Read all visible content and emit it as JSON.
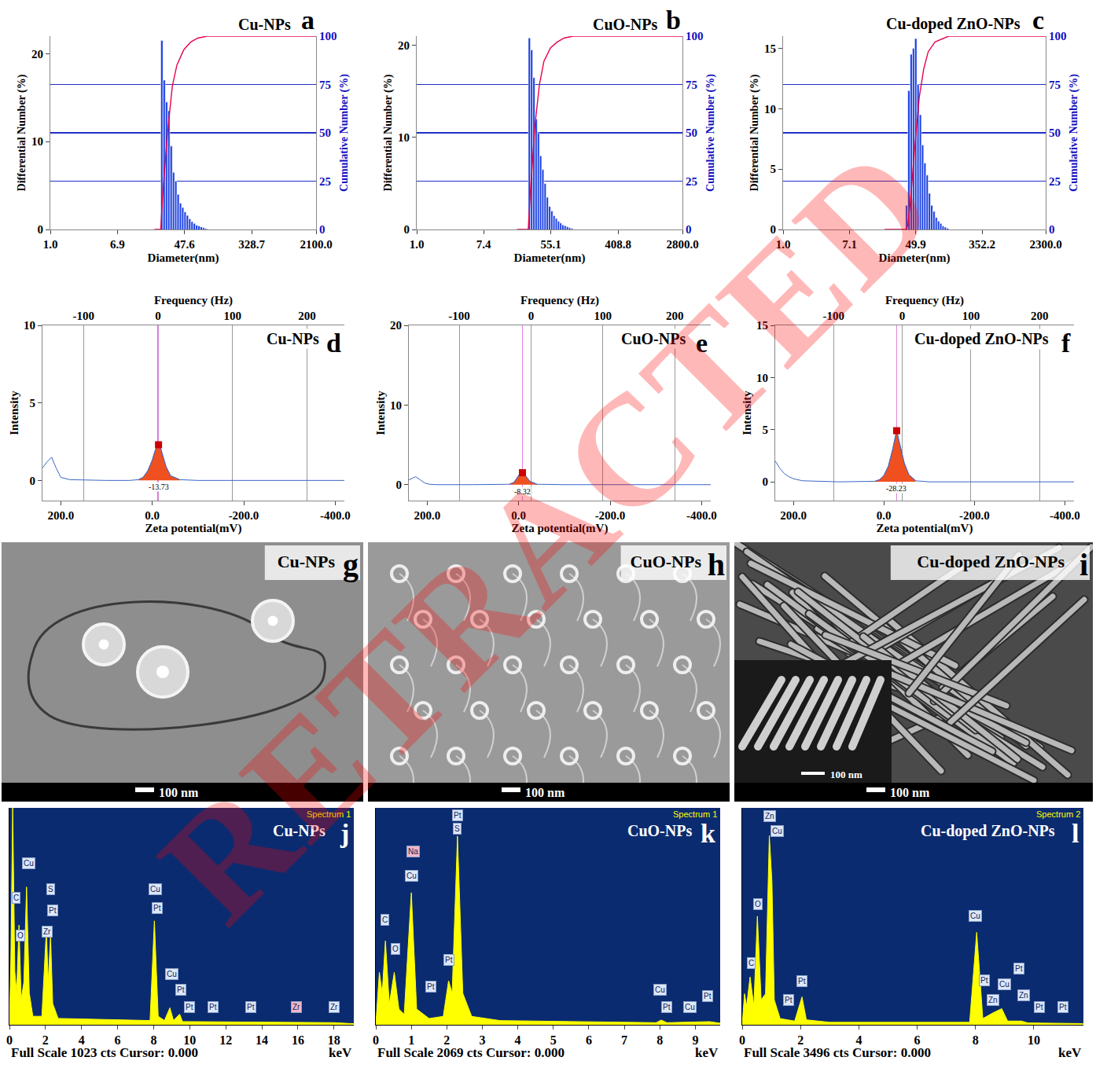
{
  "chart_data": [
    {
      "type": "histogram",
      "panel": "a",
      "title": "Cu-NPs",
      "xlabel": "Diameter(nm)",
      "ylabel": "Differential Number (%)",
      "y2label": "Cumulative Number (%)",
      "log": "x",
      "xlim": [
        1,
        2100
      ],
      "xticks": [
        {
          "value": 1,
          "label": "1.0"
        },
        6.9,
        47.6,
        328.7,
        {
          "value": 2100,
          "label": "2100.0"
        }
      ],
      "ylim": [
        0,
        22
      ],
      "yticks": [
        0,
        10,
        20
      ],
      "y2lim": [
        0,
        100
      ],
      "y2ticks": [
        0,
        25,
        50,
        75,
        100
      ],
      "grid": true,
      "color": "#1a3fe0",
      "bins": [
        24,
        25.6,
        27.4,
        29.3,
        31.3,
        33.5,
        35.8,
        38.2,
        40.9,
        43.7,
        46.7,
        49.9,
        53.4,
        57.1,
        61.0,
        65.2,
        69.7,
        74.5,
        79.7,
        85.2,
        91.1
      ],
      "counts": [
        21.5,
        17,
        14.5,
        13.5,
        9.5,
        6.5,
        5.5,
        4,
        3,
        2.5,
        2,
        1.6,
        1.2,
        0.9,
        0.7,
        0.5,
        0.4,
        0.3,
        0.2,
        0.1
      ],
      "series": [
        {
          "type": "line",
          "axis": "y2",
          "color": "#e8004c",
          "x": [
            20,
            24,
            25.6,
            27.4,
            29.3,
            33.5,
            38.2,
            46.7,
            57.1,
            69.7,
            91.1,
            2100
          ],
          "values": [
            0,
            0,
            20,
            37,
            51,
            74,
            85,
            93,
            97,
            99,
            100,
            100
          ]
        }
      ]
    },
    {
      "type": "histogram",
      "panel": "b",
      "title": "CuO-NPs",
      "xlabel": "Diameter(nm)",
      "ylabel": "Differential Number (%)",
      "y2label": "Cumulative Number (%)",
      "log": "x",
      "xlim": [
        1,
        2800
      ],
      "xticks": [
        {
          "value": 1,
          "label": "1.0"
        },
        7.4,
        55.1,
        408.8,
        {
          "value": 2800,
          "label": "2800.0"
        }
      ],
      "ylim": [
        0,
        21
      ],
      "yticks": [
        0,
        10,
        20
      ],
      "y2lim": [
        0,
        100
      ],
      "y2ticks": [
        0,
        25,
        50,
        75,
        100
      ],
      "grid": true,
      "color": "#1a3fe0",
      "bins": [
        28,
        29.9,
        32.0,
        34.2,
        36.6,
        39.1,
        41.8,
        44.7,
        47.8,
        51.1,
        54.6,
        58.4,
        62.4,
        66.7,
        71.3,
        76.2,
        81.5,
        87.1,
        93.1,
        99.5,
        106.4
      ],
      "counts": [
        20.8,
        19.5,
        16.5,
        12,
        10.5,
        8,
        6.5,
        5,
        3.5,
        2.5,
        2,
        1.5,
        1.2,
        0.9,
        0.7,
        0.5,
        0.4,
        0.3,
        0.2,
        0.1
      ],
      "series": [
        {
          "type": "line",
          "axis": "y2",
          "color": "#e8004c",
          "x": [
            20,
            28,
            29.9,
            32,
            34.2,
            39.1,
            44.7,
            54.6,
            66.7,
            81.5,
            106.4,
            2800
          ],
          "values": [
            0,
            0,
            20,
            38,
            54,
            75,
            87,
            94,
            97,
            99,
            100,
            100
          ]
        }
      ]
    },
    {
      "type": "histogram",
      "panel": "c",
      "title": "Cu-doped ZnO-NPs",
      "xlabel": "Diameter(nm)",
      "ylabel": "Differential Number (%)",
      "y2label": "Cumulative Number (%)",
      "log": "x",
      "xlim": [
        1,
        2300
      ],
      "xticks": [
        {
          "value": 1,
          "label": "1.0"
        },
        7.1,
        49.9,
        352.2,
        {
          "value": 2300,
          "label": "2300.0"
        }
      ],
      "ylim": [
        0,
        16
      ],
      "yticks": [
        0,
        5,
        10,
        15
      ],
      "y2lim": [
        0,
        100
      ],
      "y2ticks": [
        0,
        25,
        50,
        75,
        100
      ],
      "grid": true,
      "color": "#1a3fe0",
      "bins": [
        37,
        39.5,
        42.3,
        45.2,
        48.3,
        51.6,
        55.2,
        59.0,
        63.1,
        67.5,
        72.2,
        77.2,
        82.5,
        88.2,
        94.3,
        100.8,
        107.8,
        115.2,
        123.2,
        131.7
      ],
      "counts": [
        2,
        11.5,
        14.5,
        15,
        15.8,
        12,
        9.5,
        7,
        5.5,
        4.5,
        3,
        2,
        1.5,
        1,
        0.7,
        0.5,
        0.3,
        0.2,
        0.1
      ],
      "series": [
        {
          "type": "line",
          "axis": "y2",
          "color": "#e8004c",
          "x": [
            20,
            37,
            39.5,
            42.3,
            45.2,
            48.3,
            55.2,
            63.1,
            72.2,
            88.2,
            131.7,
            2300
          ],
          "values": [
            0,
            0,
            2,
            13,
            27,
            42,
            68,
            83,
            92,
            97,
            100,
            100
          ]
        }
      ]
    },
    {
      "type": "line",
      "panel": "d",
      "title": "Cu-NPs",
      "xlabel": "Zeta potential(mV)",
      "x2label": "Frequency (Hz)",
      "ylabel": "Intensity",
      "xlim": [
        240,
        -420
      ],
      "xticks": [
        {
          "value": 200,
          "label": "200.0"
        },
        {
          "value": 0,
          "label": "0.0"
        },
        {
          "value": -200,
          "label": "-200.0"
        },
        {
          "value": -400,
          "label": "-400.0"
        }
      ],
      "x2lim": [
        -155,
        250
      ],
      "x2ticks": [
        -100,
        0,
        100,
        200
      ],
      "ylim": [
        -1.3,
        10
      ],
      "yticks": [
        0,
        5,
        10
      ],
      "grid": true,
      "color": "#3a66c8",
      "x": [
        240,
        230,
        220,
        210,
        200,
        180,
        100,
        50,
        30,
        20,
        10,
        0,
        -5,
        -10,
        -13.73,
        -18,
        -25,
        -30,
        -40,
        -60,
        -100,
        -200,
        -300,
        -420
      ],
      "values": [
        0.8,
        1.2,
        1.5,
        0.8,
        0.2,
        0.05,
        0,
        0,
        0.05,
        0.2,
        0.6,
        1.3,
        1.8,
        2.2,
        2.3,
        2.1,
        1.4,
        0.9,
        0.3,
        0.05,
        0,
        0,
        0,
        0
      ],
      "peak": {
        "label": "-13.73",
        "color": "#f05020",
        "marker": "square",
        "x": [
          30,
          20,
          10,
          0,
          -5,
          -10,
          -13.73,
          -18,
          -25,
          -30,
          -40,
          -60
        ],
        "values": [
          0.05,
          0.2,
          0.6,
          1.3,
          1.8,
          2.2,
          2.3,
          2.1,
          1.4,
          0.9,
          0.3,
          0.05
        ]
      }
    },
    {
      "type": "line",
      "panel": "e",
      "title": "CuO-NPs",
      "xlabel": "Zeta potential(mV)",
      "x2label": "Frequency (Hz)",
      "ylabel": "Intensity",
      "xlim": [
        240,
        -420
      ],
      "xticks": [
        {
          "value": 200,
          "label": "200.0"
        },
        {
          "value": 0,
          "label": "0.0"
        },
        {
          "value": -200,
          "label": "-200.0"
        },
        {
          "value": -400,
          "label": "-400.0"
        }
      ],
      "x2lim": [
        -170,
        250
      ],
      "x2ticks": [
        -100,
        0,
        100,
        200
      ],
      "ylim": [
        -2,
        20
      ],
      "yticks": [
        0,
        10,
        20
      ],
      "grid": true,
      "color": "#3a66c8",
      "x": [
        240,
        225,
        215,
        205,
        195,
        180,
        100,
        40,
        20,
        10,
        5,
        0,
        -3,
        -8.32,
        -13,
        -18,
        -25,
        -40,
        -100,
        -200,
        -300,
        -420
      ],
      "values": [
        0.6,
        1.0,
        0.6,
        0.2,
        0.05,
        0,
        0,
        0,
        0.05,
        0.3,
        0.7,
        1.1,
        1.4,
        1.5,
        1.3,
        0.9,
        0.4,
        0.05,
        0,
        0,
        0,
        0
      ],
      "peak": {
        "label": "-8.32",
        "color": "#f05020",
        "marker": "square",
        "x": [
          20,
          10,
          5,
          0,
          -3,
          -8.32,
          -13,
          -18,
          -25,
          -40
        ],
        "values": [
          0.05,
          0.3,
          0.7,
          1.1,
          1.4,
          1.5,
          1.3,
          0.9,
          0.4,
          0.05
        ]
      }
    },
    {
      "type": "line",
      "panel": "f",
      "title": "Cu-doped ZnO-NPs",
      "xlabel": "Zeta potential(mV)",
      "x2label": "Frequency (Hz)",
      "ylabel": "Intensity",
      "xlim": [
        240,
        -420
      ],
      "xticks": [
        {
          "value": 200,
          "label": "200.0"
        },
        {
          "value": 0,
          "label": "0.0"
        },
        {
          "value": -200,
          "label": "-200.0"
        },
        {
          "value": -400,
          "label": "-400.0"
        }
      ],
      "x2lim": [
        -185,
        250
      ],
      "x2ticks": [
        -100,
        0,
        100,
        200
      ],
      "ylim": [
        -1.8,
        15
      ],
      "yticks": [
        0,
        5,
        10,
        15
      ],
      "grid": true,
      "color": "#3a66c8",
      "x": [
        240,
        230,
        220,
        210,
        200,
        180,
        100,
        40,
        20,
        10,
        0,
        -10,
        -20,
        -28.23,
        -35,
        -45,
        -55,
        -70,
        -100,
        -200,
        -300,
        -420
      ],
      "values": [
        2.0,
        1.3,
        0.8,
        0.5,
        0.3,
        0.1,
        0,
        0,
        0.05,
        0.2,
        0.6,
        1.5,
        3.2,
        4.9,
        3.6,
        1.8,
        0.7,
        0.1,
        0,
        0,
        0,
        0
      ],
      "peak": {
        "label": "-28.23",
        "color": "#f05020",
        "marker": "square",
        "x": [
          20,
          10,
          0,
          -10,
          -20,
          -28.23,
          -35,
          -45,
          -55,
          -70
        ],
        "values": [
          0.05,
          0.2,
          0.6,
          1.5,
          3.2,
          4.9,
          3.6,
          1.8,
          0.7,
          0.1
        ]
      }
    },
    {
      "type": "area",
      "panel": "j",
      "title": "Cu-NPs",
      "spectrum_label": "Spectrum 1",
      "footer": "Full Scale 1023 cts Cursor: 0.000",
      "xlabel": "keV",
      "xlim": [
        0,
        19.1
      ],
      "xticks": [
        0,
        2,
        4,
        6,
        8,
        10,
        12,
        14,
        16,
        18
      ],
      "ylim": [
        0,
        1023
      ],
      "tick_labels": "x",
      "color": "#ffff00",
      "x": [
        0,
        0.08,
        0.18,
        0.3,
        0.4,
        0.53,
        0.65,
        0.8,
        0.95,
        1.1,
        1.3,
        1.8,
        2.05,
        2.15,
        2.28,
        2.4,
        2.7,
        7.8,
        8.04,
        8.25,
        8.6,
        8.9,
        9.1,
        9.44,
        9.6,
        18,
        19.1
      ],
      "values": [
        0,
        300,
        1023,
        250,
        150,
        470,
        120,
        200,
        650,
        150,
        40,
        40,
        450,
        200,
        420,
        100,
        30,
        20,
        490,
        40,
        20,
        80,
        20,
        50,
        15,
        10,
        5
      ],
      "peaks": [
        {
          "label": "C",
          "x": 0.35,
          "y": 600
        },
        {
          "label": "O",
          "x": 0.6,
          "y": 420
        },
        {
          "label": "Cu",
          "x": 1.05,
          "y": 760
        },
        {
          "label": "S",
          "x": 2.3,
          "y": 640
        },
        {
          "label": "Pt",
          "x": 2.4,
          "y": 540
        },
        {
          "label": "Zr",
          "x": 2.1,
          "y": 440
        },
        {
          "label": "Cu",
          "x": 8.1,
          "y": 640
        },
        {
          "label": "Pt",
          "x": 8.2,
          "y": 550
        },
        {
          "label": "Cu",
          "x": 9.0,
          "y": 240
        },
        {
          "label": "Pt",
          "x": 9.5,
          "y": 165
        },
        {
          "label": "Pt",
          "x": 10.0,
          "y": 85
        },
        {
          "label": "Pt",
          "x": 11.3,
          "y": 85
        },
        {
          "label": "Pt",
          "x": 13.4,
          "y": 85
        },
        {
          "label": "Zr",
          "x": 15.9,
          "y": 85,
          "color": "#f2b8c8"
        },
        {
          "label": "Zr",
          "x": 18.0,
          "y": 85
        }
      ]
    },
    {
      "type": "area",
      "panel": "k",
      "title": "CuO-NPs",
      "spectrum_label": "Spectrum 1",
      "footer": "Full Scale 2069 cts Cursor: 0.000",
      "xlabel": "keV",
      "xlim": [
        0,
        9.7
      ],
      "xticks": [
        0,
        1,
        2,
        3,
        4,
        5,
        6,
        7,
        8,
        9
      ],
      "ylim": [
        0,
        2069
      ],
      "tick_labels": "x",
      "color": "#ffff00",
      "x": [
        0,
        0.1,
        0.18,
        0.27,
        0.38,
        0.52,
        0.65,
        0.8,
        1.0,
        1.15,
        1.5,
        1.9,
        2.05,
        2.15,
        2.3,
        2.45,
        2.7,
        3.5,
        7.9,
        8.04,
        8.2,
        9.4,
        9.7
      ],
      "values": [
        0,
        500,
        300,
        800,
        200,
        500,
        150,
        100,
        1260,
        150,
        60,
        80,
        420,
        300,
        1800,
        300,
        80,
        40,
        20,
        45,
        20,
        30,
        15
      ],
      "peaks": [
        {
          "label": "C",
          "x": 0.25,
          "y": 1000
        },
        {
          "label": "O",
          "x": 0.55,
          "y": 720
        },
        {
          "label": "Cu",
          "x": 1.0,
          "y": 1420
        },
        {
          "label": "Na",
          "x": 1.05,
          "y": 1650,
          "color": "#f2b8c8"
        },
        {
          "label": "Pt",
          "x": 1.55,
          "y": 360
        },
        {
          "label": "Pt",
          "x": 2.05,
          "y": 620
        },
        {
          "label": "S",
          "x": 2.3,
          "y": 1870
        },
        {
          "label": "Pt",
          "x": 2.3,
          "y": 2000
        },
        {
          "label": "Cu",
          "x": 8.0,
          "y": 330
        },
        {
          "label": "Pt",
          "x": 8.2,
          "y": 170
        },
        {
          "label": "Cu",
          "x": 8.85,
          "y": 170
        },
        {
          "label": "Pt",
          "x": 9.35,
          "y": 270
        }
      ]
    },
    {
      "type": "area",
      "panel": "l",
      "title": "Cu-doped ZnO-NPs",
      "spectrum_label": "Spectrum 2",
      "footer": "Full Scale 3496 cts Cursor: 0.000",
      "xlabel": "keV",
      "xlim": [
        0,
        11.7
      ],
      "xticks": [
        0,
        2,
        4,
        6,
        8,
        10
      ],
      "ylim": [
        0,
        3496
      ],
      "tick_labels": "x",
      "color": "#ffff00",
      "x": [
        0,
        0.08,
        0.15,
        0.27,
        0.4,
        0.52,
        0.65,
        0.8,
        0.93,
        1.02,
        1.1,
        1.3,
        1.8,
        2.05,
        2.2,
        3,
        7.8,
        8.04,
        8.25,
        8.63,
        8.9,
        9.1,
        9.57,
        9.8,
        11.5,
        11.7
      ],
      "values": [
        0,
        500,
        300,
        770,
        300,
        1750,
        400,
        500,
        3050,
        2300,
        400,
        100,
        60,
        450,
        80,
        40,
        40,
        1490,
        100,
        200,
        260,
        60,
        60,
        30,
        20,
        15
      ],
      "peaks": [
        {
          "label": "C",
          "x": 0.3,
          "y": 1000
        },
        {
          "label": "O",
          "x": 0.55,
          "y": 1950
        },
        {
          "label": "Zn",
          "x": 0.95,
          "y": 3360
        },
        {
          "label": "Cu",
          "x": 1.2,
          "y": 3120
        },
        {
          "label": "Pt",
          "x": 1.6,
          "y": 400
        },
        {
          "label": "Pt",
          "x": 2.05,
          "y": 700
        },
        {
          "label": "Cu",
          "x": 8.0,
          "y": 1760
        },
        {
          "label": "Pt",
          "x": 8.3,
          "y": 720
        },
        {
          "label": "Zn",
          "x": 8.6,
          "y": 400
        },
        {
          "label": "Cu",
          "x": 9.0,
          "y": 650
        },
        {
          "label": "Pt",
          "x": 9.5,
          "y": 900
        },
        {
          "label": "Zn",
          "x": 9.65,
          "y": 480
        },
        {
          "label": "Pt",
          "x": 10.2,
          "y": 280
        },
        {
          "label": "Pt",
          "x": 11.0,
          "y": 280
        }
      ]
    }
  ],
  "images": [
    {
      "panel": "g",
      "title": "Cu-NPs",
      "scale_bar": "100 nm"
    },
    {
      "panel": "h",
      "title": "CuO-NPs",
      "scale_bar": "100 nm"
    },
    {
      "panel": "i",
      "title": "Cu-doped ZnO-NPs",
      "scale_bar": "100 nm",
      "inset_scale_bar": "100 nm"
    }
  ],
  "watermark": "RETRACTED"
}
